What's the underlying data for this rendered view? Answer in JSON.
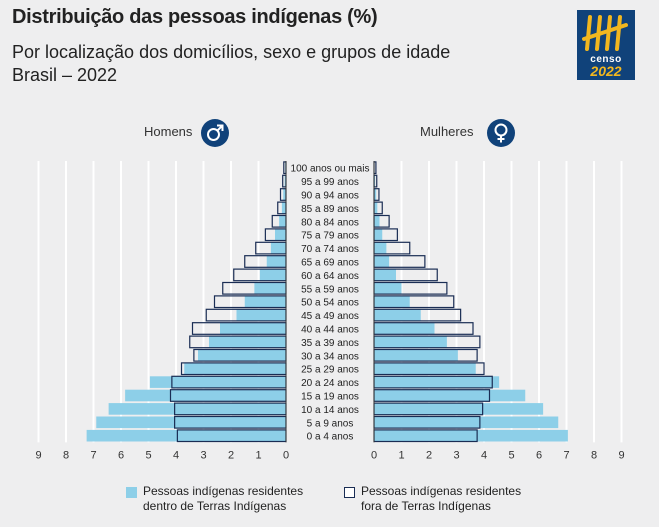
{
  "title": "Distribuição das pessoas indígenas (%)",
  "subtitle_line1": "Por localização dos domicílios, sexo e grupos de idade",
  "subtitle_line2": "Brasil – 2022",
  "logo": {
    "word": "censo",
    "year": "2022"
  },
  "labels": {
    "men": "Homens",
    "women": "Mulheres"
  },
  "legend": {
    "inside_line1": "Pessoas indígenas residentes",
    "inside_line2": "dentro de Terras Indígenas",
    "outside_line1": "Pessoas indígenas residentes",
    "outside_line2": "fora de Terras Indígenas"
  },
  "colors": {
    "inside": "#8dcfe8",
    "outside_fill": "#ffffff",
    "outside_stroke": "#1a2d54",
    "icon_bg": "#10427a",
    "accent": "#f2b71f"
  },
  "chart_data": {
    "type": "bar",
    "orientation": "horizontal-population-pyramid",
    "categories": [
      "100 anos ou mais",
      "95 a 99 anos",
      "90 a 94 anos",
      "85 a 89 anos",
      "80 a 84 anos",
      "75 a 79 anos",
      "70 a 74 anos",
      "65 a 69 anos",
      "60 a 64 anos",
      "55 a 59 anos",
      "50 a 54 anos",
      "45 a 49 anos",
      "40 a 44 anos",
      "35 a 39 anos",
      "30 a 34 anos",
      "25 a 29 anos",
      "20 a 24 anos",
      "15 a 19 anos",
      "10 a 14 anos",
      "5 a 9 anos",
      "0 a 4 anos"
    ],
    "xticks": [
      9,
      8,
      7,
      6,
      5,
      4,
      3,
      2,
      1,
      0
    ],
    "xlim": [
      0,
      9
    ],
    "series": [
      {
        "name": "Pessoas indígenas residentes dentro de Terras Indígenas",
        "sex": "male",
        "values": [
          0.03,
          0.05,
          0.1,
          0.15,
          0.25,
          0.4,
          0.55,
          0.7,
          0.95,
          1.15,
          1.5,
          1.8,
          2.4,
          2.8,
          3.2,
          3.7,
          4.95,
          5.85,
          6.45,
          6.9,
          7.25
        ]
      },
      {
        "name": "Pessoas indígenas residentes fora de Terras Indígenas",
        "sex": "male",
        "values": [
          0.08,
          0.12,
          0.2,
          0.3,
          0.5,
          0.75,
          1.1,
          1.5,
          1.9,
          2.3,
          2.6,
          2.9,
          3.4,
          3.5,
          3.35,
          3.8,
          4.15,
          4.2,
          4.05,
          4.05,
          3.95
        ]
      },
      {
        "name": "Pessoas indígenas residentes dentro de Terras Indígenas",
        "sex": "female",
        "values": [
          0.02,
          0.04,
          0.08,
          0.12,
          0.2,
          0.3,
          0.45,
          0.55,
          0.8,
          1.0,
          1.3,
          1.7,
          2.2,
          2.65,
          3.05,
          3.7,
          4.55,
          5.5,
          6.15,
          6.7,
          7.05
        ]
      },
      {
        "name": "Pessoas indígenas residentes fora de Terras Indígenas",
        "sex": "female",
        "values": [
          0.07,
          0.1,
          0.18,
          0.3,
          0.55,
          0.85,
          1.3,
          1.85,
          2.3,
          2.65,
          2.9,
          3.15,
          3.6,
          3.85,
          3.75,
          4.0,
          4.3,
          4.2,
          3.95,
          3.85,
          3.75
        ]
      }
    ]
  }
}
